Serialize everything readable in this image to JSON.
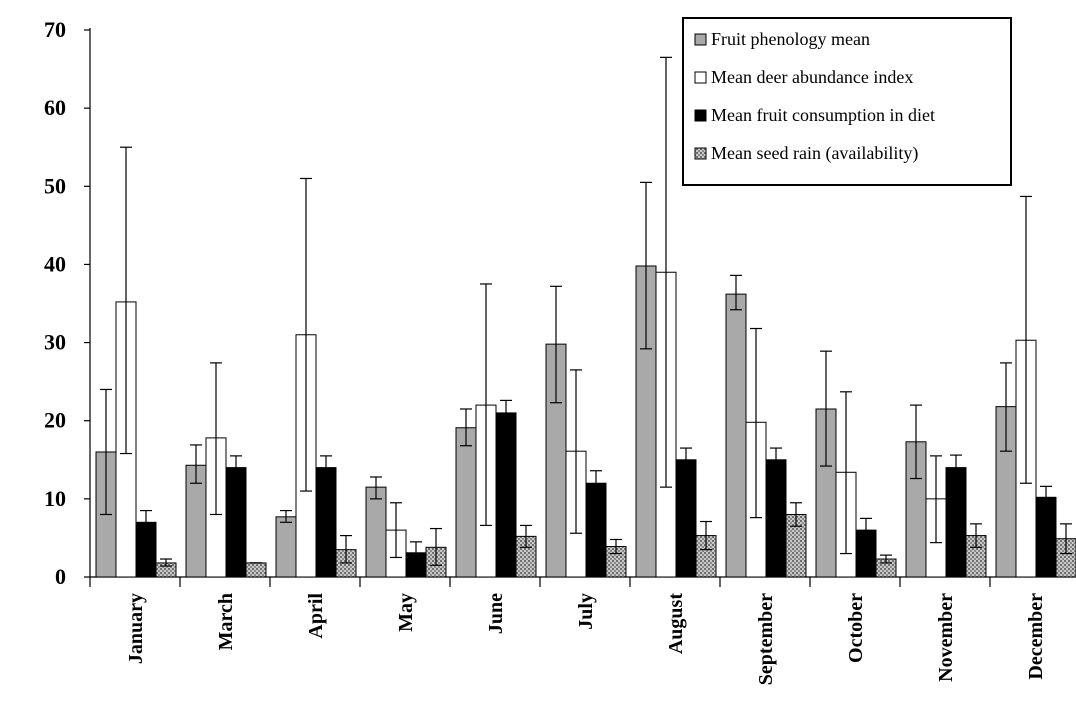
{
  "chart_data": {
    "type": "bar",
    "categories": [
      "January",
      "March",
      "April",
      "May",
      "June",
      "July",
      "August",
      "September",
      "October",
      "November",
      "December"
    ],
    "series": [
      {
        "name": "Fruit phenology mean",
        "values": [
          16,
          14.3,
          7.7,
          11.5,
          19.1,
          29.8,
          39.8,
          36.2,
          21.5,
          17.3,
          21.8
        ],
        "err_low": [
          8,
          12,
          7,
          10,
          16.8,
          22.3,
          29.2,
          34.2,
          14.2,
          12.6,
          16.1
        ],
        "err_high": [
          24,
          16.9,
          8.5,
          12.8,
          21.5,
          37.2,
          50.5,
          38.6,
          28.9,
          22,
          27.4
        ],
        "color": "#a9a9a9"
      },
      {
        "name": "Mean deer abundance index",
        "values": [
          35.2,
          17.8,
          31,
          6,
          22,
          16.1,
          39,
          19.8,
          13.4,
          10,
          30.3
        ],
        "err_low": [
          15.8,
          8,
          11,
          2.5,
          6.6,
          5.6,
          11.5,
          7.6,
          3,
          4.4,
          12
        ],
        "err_high": [
          55,
          27.4,
          51,
          9.5,
          37.5,
          26.5,
          66.5,
          31.8,
          23.7,
          15.5,
          48.7
        ],
        "color": "#ffffff"
      },
      {
        "name": "Mean fruit consumption in diet",
        "values": [
          7,
          14,
          14,
          3.1,
          21,
          12,
          15,
          15,
          6,
          14,
          10.2
        ],
        "err_low": [
          5.5,
          12.5,
          12.5,
          1.8,
          19.4,
          10.6,
          13.5,
          13.5,
          4.5,
          12.5,
          8.8
        ],
        "err_high": [
          8.5,
          15.5,
          15.5,
          4.5,
          22.6,
          13.6,
          16.5,
          16.5,
          7.5,
          15.6,
          11.6
        ],
        "color": "#000000"
      },
      {
        "name": "Mean seed rain (availability)",
        "values": [
          1.8,
          1.8,
          3.5,
          3.8,
          5.2,
          3.9,
          5.3,
          8,
          2.3,
          5.3,
          4.9
        ],
        "err_low": [
          1.4,
          1.8,
          1.8,
          1.5,
          3.8,
          3,
          3.5,
          6.5,
          1.8,
          3.8,
          3
        ],
        "err_high": [
          2.3,
          1.8,
          5.3,
          6.2,
          6.6,
          4.8,
          7.1,
          9.5,
          2.8,
          6.8,
          6.8
        ],
        "color": "#9a9a9a"
      }
    ],
    "ylim": [
      0,
      70
    ],
    "yticks": [
      0,
      10,
      20,
      30,
      40,
      50,
      60,
      70
    ],
    "legend_position": "top-right",
    "grid": false
  }
}
